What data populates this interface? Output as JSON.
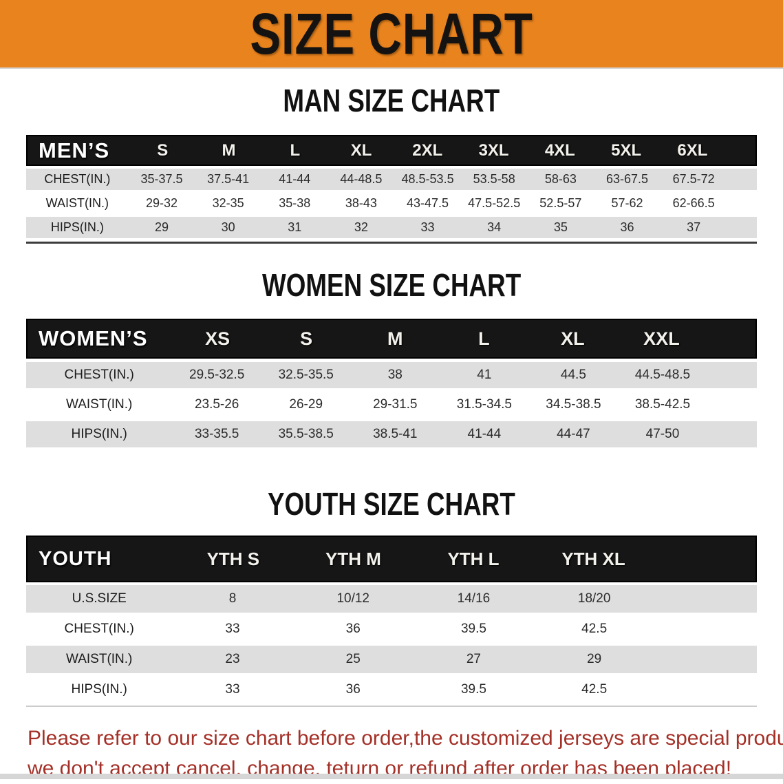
{
  "banner": {
    "title": "SIZE CHART",
    "bg_color": "#E8831E",
    "text_color": "#151311"
  },
  "sections": {
    "men": {
      "heading": "MAN SIZE CHART",
      "corner": "MEN’S",
      "columns": [
        "S",
        "M",
        "L",
        "XL",
        "2XL",
        "3XL",
        "4XL",
        "5XL",
        "6XL"
      ],
      "rows": [
        {
          "label": "CHEST(IN.)",
          "values": [
            "35-37.5",
            "37.5-41",
            "41-44",
            "44-48.5",
            "48.5-53.5",
            "53.5-58",
            "58-63",
            "63-67.5",
            "67.5-72"
          ]
        },
        {
          "label": "WAIST(IN.)",
          "values": [
            "29-32",
            "32-35",
            "35-38",
            "38-43",
            "43-47.5",
            "47.5-52.5",
            "52.5-57",
            "57-62",
            "62-66.5"
          ]
        },
        {
          "label": "HIPS(IN.)",
          "values": [
            "29",
            "30",
            "31",
            "32",
            "33",
            "34",
            "35",
            "36",
            "37"
          ]
        }
      ]
    },
    "women": {
      "heading": "WOMEN SIZE CHART",
      "corner": "WOMEN’S",
      "columns": [
        "XS",
        "S",
        "M",
        "L",
        "XL",
        "XXL"
      ],
      "rows": [
        {
          "label": "CHEST(IN.)",
          "values": [
            "29.5-32.5",
            "32.5-35.5",
            "38",
            "41",
            "44.5",
            "44.5-48.5"
          ]
        },
        {
          "label": "WAIST(IN.)",
          "values": [
            "23.5-26",
            "26-29",
            "29-31.5",
            "31.5-34.5",
            "34.5-38.5",
            "38.5-42.5"
          ]
        },
        {
          "label": "HIPS(IN.)",
          "values": [
            "33-35.5",
            "35.5-38.5",
            "38.5-41",
            "41-44",
            "44-47",
            "47-50"
          ]
        }
      ]
    },
    "youth": {
      "heading": "YOUTH SIZE CHART",
      "corner": "YOUTH",
      "columns": [
        "YTH S",
        "YTH M",
        "YTH L",
        "YTH XL"
      ],
      "rows": [
        {
          "label": "U.S.SIZE",
          "values": [
            "8",
            "10/12",
            "14/16",
            "18/20"
          ]
        },
        {
          "label": "CHEST(IN.)",
          "values": [
            "33",
            "36",
            "39.5",
            "42.5"
          ]
        },
        {
          "label": "WAIST(IN.)",
          "values": [
            "23",
            "25",
            "27",
            "29"
          ]
        },
        {
          "label": "HIPS(IN.)",
          "values": [
            "33",
            "36",
            "39.5",
            "42.5"
          ]
        }
      ]
    }
  },
  "footer": {
    "line1": "Please refer to our size chart before order,the customized jerseys are special products,",
    "line2": "we don't accept cancel, change, teturn or refund after order has been placed!",
    "text_color": "#A43027"
  },
  "colors": {
    "header_row_bg": "#171616",
    "gray_row_bg": "#DEDEDE",
    "white_row_bg": "#FFFFFF"
  }
}
